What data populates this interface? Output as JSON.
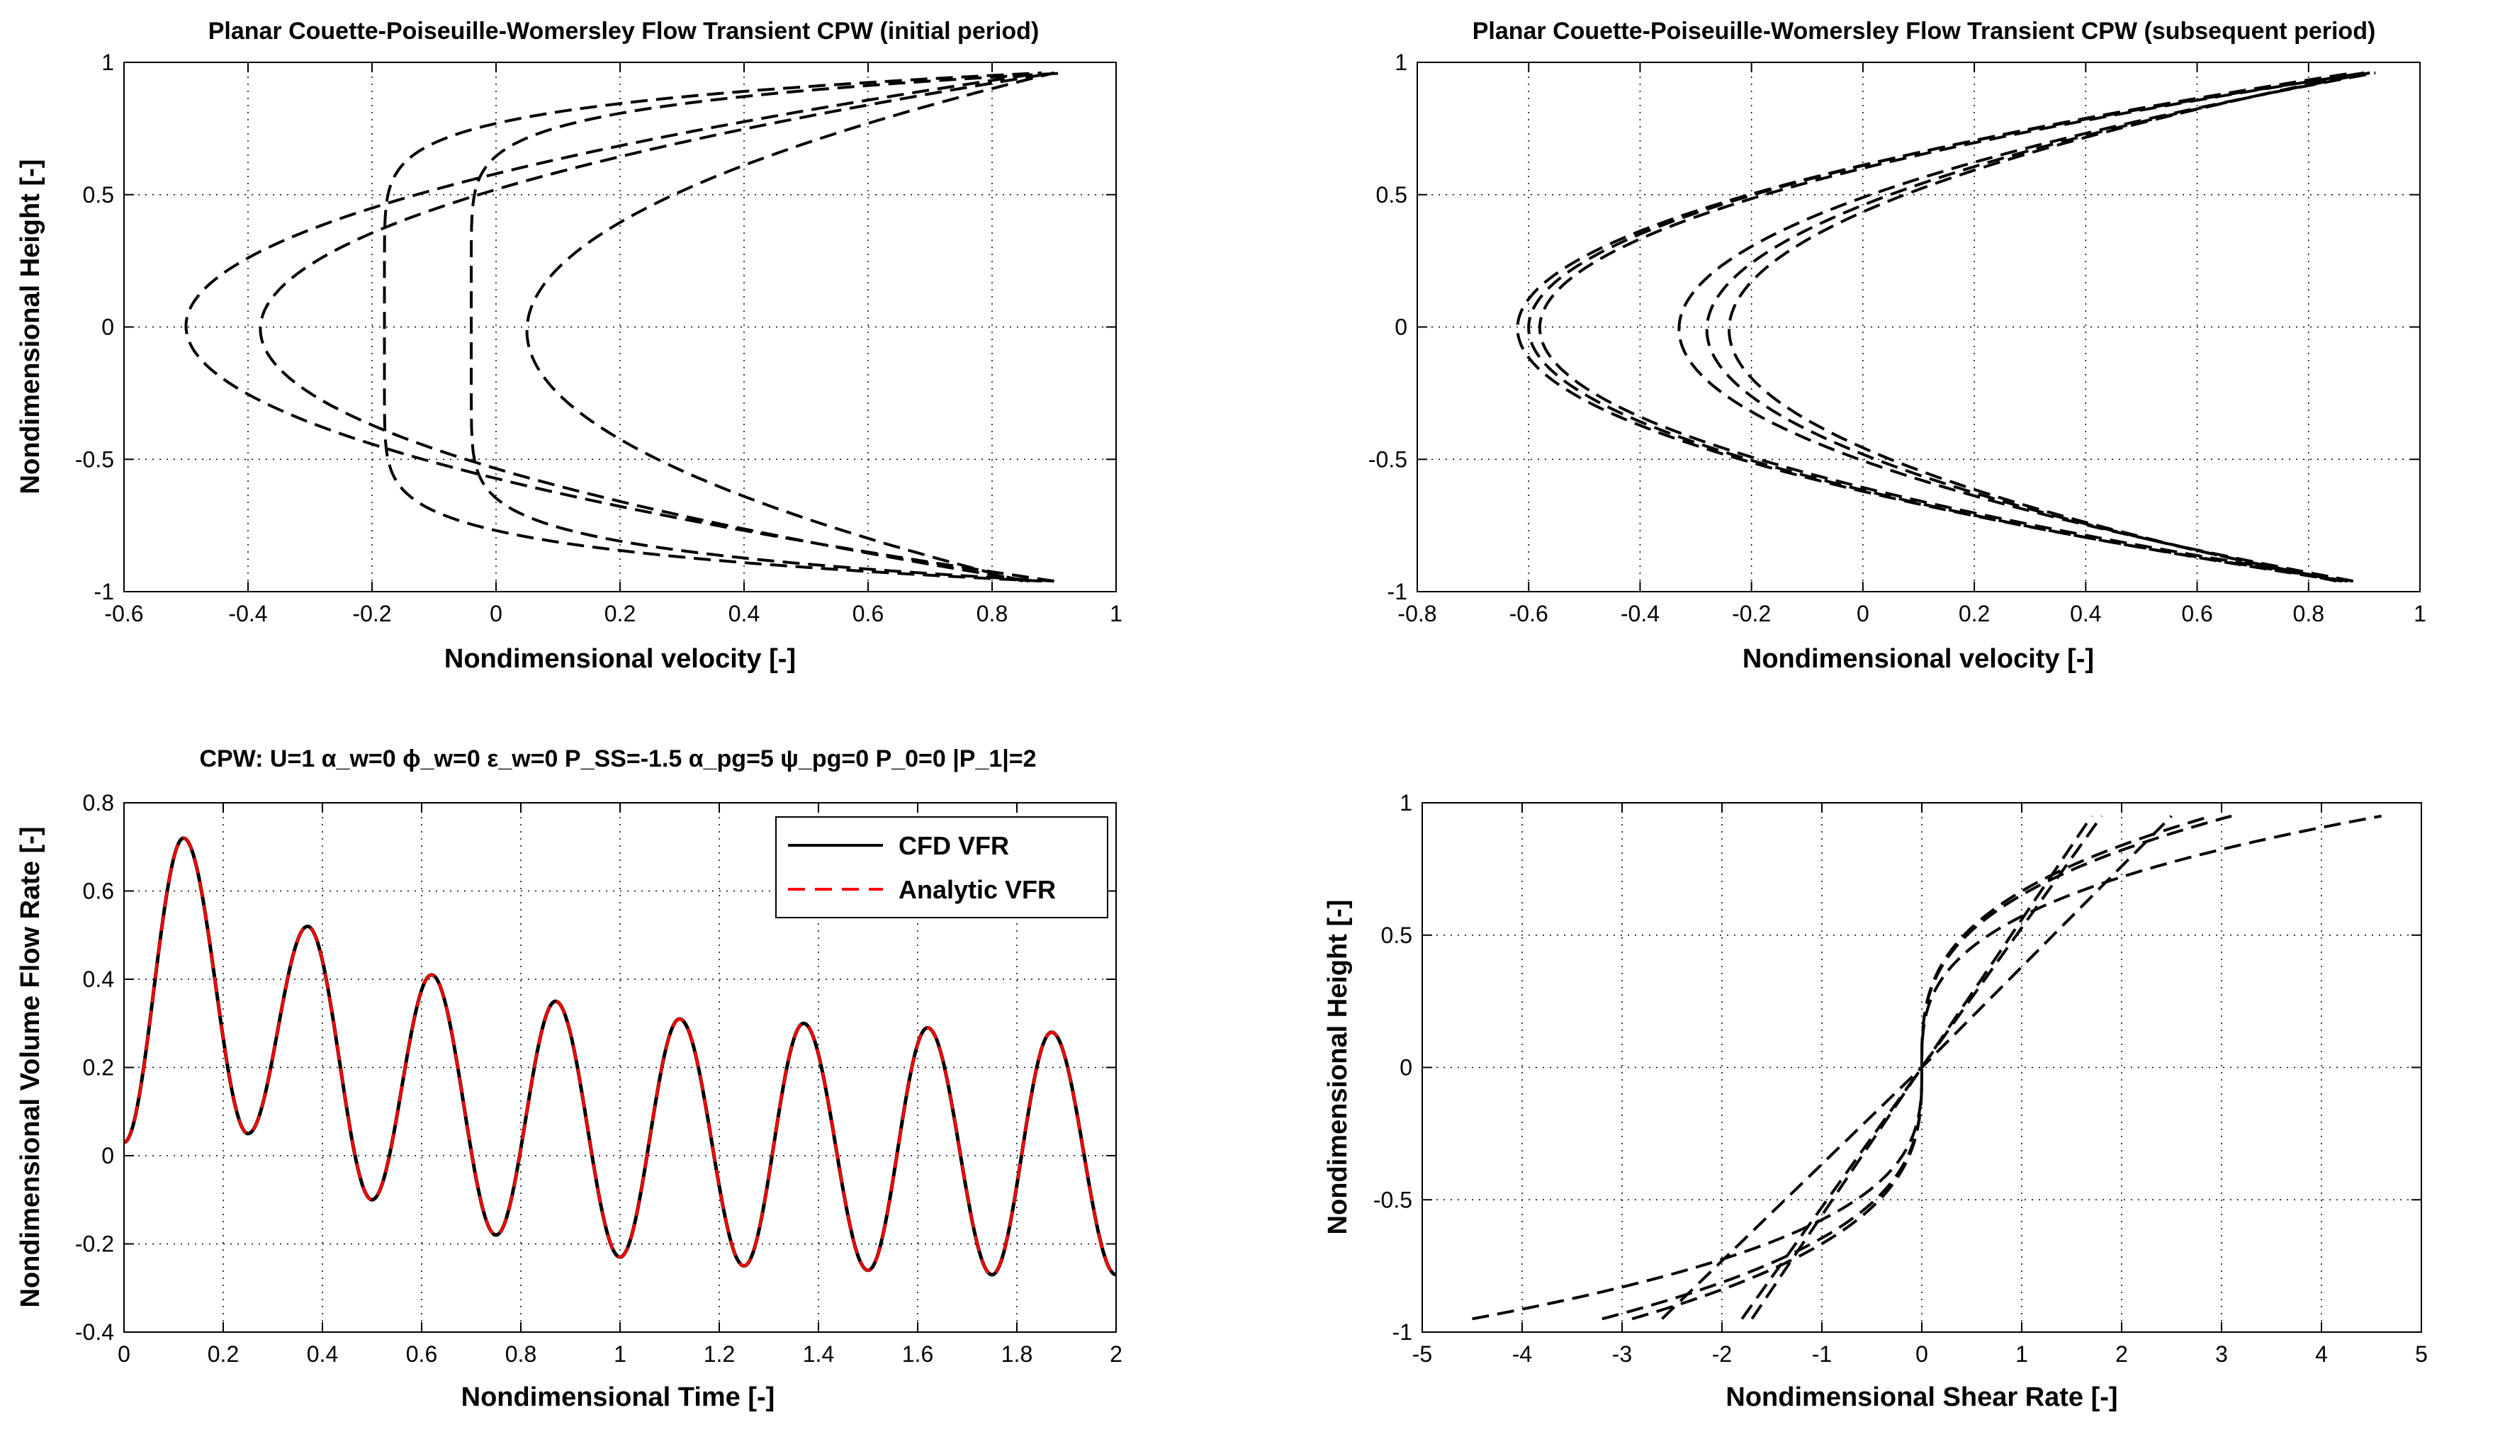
{
  "charts": [
    {
      "type": "line",
      "title": "Planar Couette-Poiseuille-Womersley Flow Transient CPW (initial period)",
      "xlabel": "Nondimensional velocity [-]",
      "ylabel": "Nondimensional Height [-]",
      "xlim": [
        -0.6,
        1.0
      ],
      "ylim": [
        -1,
        1
      ],
      "xticks": [
        -0.6,
        -0.4,
        -0.2,
        0,
        0.2,
        0.4,
        0.6,
        0.8,
        1
      ],
      "xtick_labels": [
        "-0.6",
        "-0.4",
        "-0.2",
        "0",
        "0.2",
        "0.4",
        "0.6",
        "0.8",
        "1"
      ],
      "yticks": [
        -1,
        -0.5,
        0,
        0.5,
        1
      ],
      "ytick_labels": [
        "-1",
        "-0.5",
        "0",
        "0.5",
        "1"
      ],
      "grid": true,
      "line_color": "#000000",
      "profiles": [
        {
          "kind": "parabolic",
          "center": -0.5,
          "top": 0.88,
          "bottom": 0.9
        },
        {
          "kind": "parabolic",
          "center": -0.38,
          "top": 0.9,
          "bottom": 0.86
        },
        {
          "kind": "flat",
          "center": -0.18,
          "top": 0.88,
          "bottom": 0.88
        },
        {
          "kind": "flat",
          "center": -0.04,
          "top": 0.92,
          "bottom": 0.9
        },
        {
          "kind": "parabolic",
          "center": 0.05,
          "top": 0.9,
          "bottom": 0.85
        }
      ]
    },
    {
      "type": "line",
      "title": "Planar Couette-Poiseuille-Womersley Flow Transient CPW (subsequent period)",
      "xlabel": "Nondimensional velocity [-]",
      "ylabel": "",
      "xlim": [
        -0.8,
        1.0
      ],
      "ylim": [
        -1,
        1
      ],
      "xticks": [
        -0.8,
        -0.6,
        -0.4,
        -0.2,
        0,
        0.2,
        0.4,
        0.6,
        0.8,
        1
      ],
      "xtick_labels": [
        "-0.8",
        "-0.6",
        "-0.4",
        "-0.2",
        "0",
        "0.2",
        "0.4",
        "0.6",
        "0.8",
        "1"
      ],
      "yticks": [
        -1,
        -0.5,
        0,
        0.5,
        1
      ],
      "ytick_labels": [
        "-1",
        "-0.5",
        "0",
        "0.5",
        "1"
      ],
      "grid": true,
      "line_color": "#000000",
      "profiles": [
        {
          "kind": "parabolic",
          "center": -0.62,
          "top": 0.9,
          "bottom": 0.87
        },
        {
          "kind": "parabolic",
          "center": -0.6,
          "top": 0.88,
          "bottom": 0.86
        },
        {
          "kind": "parabolic",
          "center": -0.58,
          "top": 0.9,
          "bottom": 0.88
        },
        {
          "kind": "parabolic",
          "center": -0.33,
          "top": 0.92,
          "bottom": 0.88
        },
        {
          "kind": "parabolic",
          "center": -0.28,
          "top": 0.91,
          "bottom": 0.86
        },
        {
          "kind": "parabolic",
          "center": -0.24,
          "top": 0.9,
          "bottom": 0.85
        }
      ]
    },
    {
      "type": "line",
      "title": "CPW:  U=1 α_w=0 ϕ_w=0 ε_w=0 P_SS=-1.5 α_pg=5 ψ_pg=0 P_0=0 |P_1|=2",
      "xlabel": "Nondimensional Time [-]",
      "ylabel": "Nondimensional Volume Flow Rate [-]",
      "xlim": [
        0,
        2
      ],
      "ylim": [
        -0.4,
        0.8
      ],
      "xticks": [
        0,
        0.2,
        0.4,
        0.6,
        0.8,
        1,
        1.2,
        1.4,
        1.6,
        1.8,
        2
      ],
      "xtick_labels": [
        "0",
        "0.2",
        "0.4",
        "0.6",
        "0.8",
        "1",
        "1.2",
        "1.4",
        "1.6",
        "1.8",
        "2"
      ],
      "yticks": [
        -0.4,
        -0.2,
        0,
        0.2,
        0.4,
        0.6,
        0.8
      ],
      "ytick_labels": [
        "-0.4",
        "-0.2",
        "0",
        "0.2",
        "0.4",
        "0.6",
        "0.8"
      ],
      "grid": true,
      "legend": {
        "placement": "top-right"
      },
      "series": [
        {
          "name": "CFD VFR",
          "color": "#000000",
          "style": "solid"
        },
        {
          "name": "Analytic VFR",
          "color": "#ff0000",
          "style": "dashed"
        }
      ],
      "start_value": 0.03,
      "period": 0.25,
      "extrema": [
        {
          "t": 0.12,
          "v": 0.72
        },
        {
          "t": 0.25,
          "v": 0.05
        },
        {
          "t": 0.37,
          "v": 0.52
        },
        {
          "t": 0.5,
          "v": -0.1
        },
        {
          "t": 0.62,
          "v": 0.41
        },
        {
          "t": 0.75,
          "v": -0.18
        },
        {
          "t": 0.87,
          "v": 0.35
        },
        {
          "t": 1.0,
          "v": -0.23
        },
        {
          "t": 1.12,
          "v": 0.31
        },
        {
          "t": 1.25,
          "v": -0.25
        },
        {
          "t": 1.37,
          "v": 0.3
        },
        {
          "t": 1.5,
          "v": -0.26
        },
        {
          "t": 1.62,
          "v": 0.29
        },
        {
          "t": 1.75,
          "v": -0.27
        },
        {
          "t": 1.87,
          "v": 0.28
        },
        {
          "t": 2.0,
          "v": -0.27
        }
      ]
    },
    {
      "type": "line",
      "title": "",
      "xlabel": "Nondimensional Shear Rate [-]",
      "ylabel": "Nondimensional Height [-]",
      "xlim": [
        -5,
        5
      ],
      "ylim": [
        -1,
        1
      ],
      "xticks": [
        -5,
        -4,
        -3,
        -2,
        -1,
        0,
        1,
        2,
        3,
        4,
        5
      ],
      "xtick_labels": [
        "-5",
        "-4",
        "-3",
        "-2",
        "-1",
        "0",
        "1",
        "2",
        "3",
        "4",
        "5"
      ],
      "yticks": [
        -1,
        -0.5,
        0,
        0.5,
        1
      ],
      "ytick_labels": [
        "-1",
        "-0.5",
        "0",
        "0.5",
        "1"
      ],
      "grid": true,
      "line_color": "#000000",
      "shear_profiles": [
        {
          "kind": "cubic",
          "top": 4.6,
          "bottom": -4.5
        },
        {
          "kind": "cubic",
          "top": 2.9,
          "bottom": -3.2
        },
        {
          "kind": "cubic",
          "top": 3.1,
          "bottom": -2.9
        },
        {
          "kind": "linear",
          "top": 2.5,
          "bottom": -2.6
        },
        {
          "kind": "linear",
          "top": 1.8,
          "bottom": -1.7
        },
        {
          "kind": "linear",
          "top": 1.7,
          "bottom": -1.8
        }
      ]
    }
  ]
}
